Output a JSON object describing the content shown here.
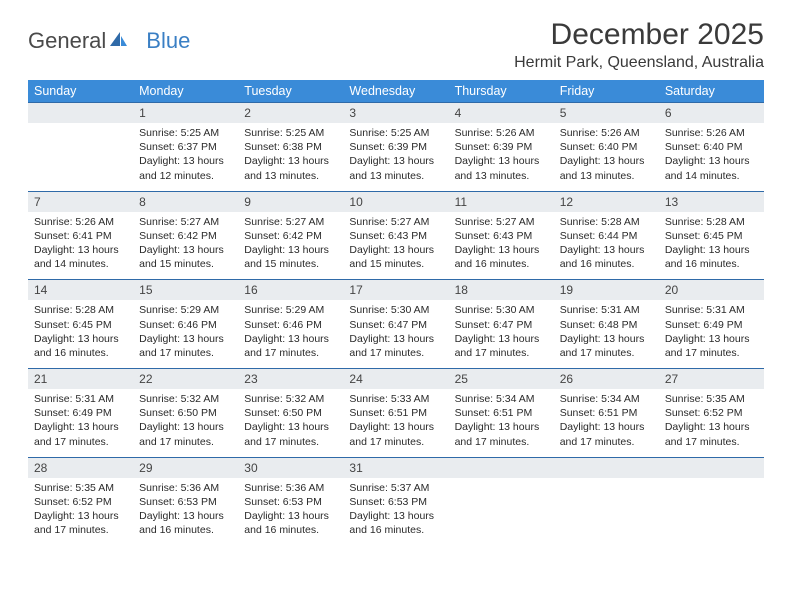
{
  "logo": {
    "general": "General",
    "blue": "Blue"
  },
  "header": {
    "month_title": "December 2025",
    "location": "Hermit Park, Queensland, Australia"
  },
  "style": {
    "header_bg": "#3a8bd8",
    "header_fg": "#ffffff",
    "daynum_bg": "#e9ecef",
    "daynum_border": "#2f6aa8",
    "body_bg": "#ffffff",
    "text_color": "#333333",
    "title_fontsize": 30,
    "location_fontsize": 16,
    "dayheader_fontsize": 12.5,
    "body_fontsize": 10.5
  },
  "weekdays": [
    "Sunday",
    "Monday",
    "Tuesday",
    "Wednesday",
    "Thursday",
    "Friday",
    "Saturday"
  ],
  "weeks": [
    [
      null,
      {
        "n": "1",
        "sunrise": "5:25 AM",
        "sunset": "6:37 PM",
        "daylight": "13 hours and 12 minutes."
      },
      {
        "n": "2",
        "sunrise": "5:25 AM",
        "sunset": "6:38 PM",
        "daylight": "13 hours and 13 minutes."
      },
      {
        "n": "3",
        "sunrise": "5:25 AM",
        "sunset": "6:39 PM",
        "daylight": "13 hours and 13 minutes."
      },
      {
        "n": "4",
        "sunrise": "5:26 AM",
        "sunset": "6:39 PM",
        "daylight": "13 hours and 13 minutes."
      },
      {
        "n": "5",
        "sunrise": "5:26 AM",
        "sunset": "6:40 PM",
        "daylight": "13 hours and 13 minutes."
      },
      {
        "n": "6",
        "sunrise": "5:26 AM",
        "sunset": "6:40 PM",
        "daylight": "13 hours and 14 minutes."
      }
    ],
    [
      {
        "n": "7",
        "sunrise": "5:26 AM",
        "sunset": "6:41 PM",
        "daylight": "13 hours and 14 minutes."
      },
      {
        "n": "8",
        "sunrise": "5:27 AM",
        "sunset": "6:42 PM",
        "daylight": "13 hours and 15 minutes."
      },
      {
        "n": "9",
        "sunrise": "5:27 AM",
        "sunset": "6:42 PM",
        "daylight": "13 hours and 15 minutes."
      },
      {
        "n": "10",
        "sunrise": "5:27 AM",
        "sunset": "6:43 PM",
        "daylight": "13 hours and 15 minutes."
      },
      {
        "n": "11",
        "sunrise": "5:27 AM",
        "sunset": "6:43 PM",
        "daylight": "13 hours and 16 minutes."
      },
      {
        "n": "12",
        "sunrise": "5:28 AM",
        "sunset": "6:44 PM",
        "daylight": "13 hours and 16 minutes."
      },
      {
        "n": "13",
        "sunrise": "5:28 AM",
        "sunset": "6:45 PM",
        "daylight": "13 hours and 16 minutes."
      }
    ],
    [
      {
        "n": "14",
        "sunrise": "5:28 AM",
        "sunset": "6:45 PM",
        "daylight": "13 hours and 16 minutes."
      },
      {
        "n": "15",
        "sunrise": "5:29 AM",
        "sunset": "6:46 PM",
        "daylight": "13 hours and 17 minutes."
      },
      {
        "n": "16",
        "sunrise": "5:29 AM",
        "sunset": "6:46 PM",
        "daylight": "13 hours and 17 minutes."
      },
      {
        "n": "17",
        "sunrise": "5:30 AM",
        "sunset": "6:47 PM",
        "daylight": "13 hours and 17 minutes."
      },
      {
        "n": "18",
        "sunrise": "5:30 AM",
        "sunset": "6:47 PM",
        "daylight": "13 hours and 17 minutes."
      },
      {
        "n": "19",
        "sunrise": "5:31 AM",
        "sunset": "6:48 PM",
        "daylight": "13 hours and 17 minutes."
      },
      {
        "n": "20",
        "sunrise": "5:31 AM",
        "sunset": "6:49 PM",
        "daylight": "13 hours and 17 minutes."
      }
    ],
    [
      {
        "n": "21",
        "sunrise": "5:31 AM",
        "sunset": "6:49 PM",
        "daylight": "13 hours and 17 minutes."
      },
      {
        "n": "22",
        "sunrise": "5:32 AM",
        "sunset": "6:50 PM",
        "daylight": "13 hours and 17 minutes."
      },
      {
        "n": "23",
        "sunrise": "5:32 AM",
        "sunset": "6:50 PM",
        "daylight": "13 hours and 17 minutes."
      },
      {
        "n": "24",
        "sunrise": "5:33 AM",
        "sunset": "6:51 PM",
        "daylight": "13 hours and 17 minutes."
      },
      {
        "n": "25",
        "sunrise": "5:34 AM",
        "sunset": "6:51 PM",
        "daylight": "13 hours and 17 minutes."
      },
      {
        "n": "26",
        "sunrise": "5:34 AM",
        "sunset": "6:51 PM",
        "daylight": "13 hours and 17 minutes."
      },
      {
        "n": "27",
        "sunrise": "5:35 AM",
        "sunset": "6:52 PM",
        "daylight": "13 hours and 17 minutes."
      }
    ],
    [
      {
        "n": "28",
        "sunrise": "5:35 AM",
        "sunset": "6:52 PM",
        "daylight": "13 hours and 17 minutes."
      },
      {
        "n": "29",
        "sunrise": "5:36 AM",
        "sunset": "6:53 PM",
        "daylight": "13 hours and 16 minutes."
      },
      {
        "n": "30",
        "sunrise": "5:36 AM",
        "sunset": "6:53 PM",
        "daylight": "13 hours and 16 minutes."
      },
      {
        "n": "31",
        "sunrise": "5:37 AM",
        "sunset": "6:53 PM",
        "daylight": "13 hours and 16 minutes."
      },
      null,
      null,
      null
    ]
  ],
  "labels": {
    "sunrise_prefix": "Sunrise: ",
    "sunset_prefix": "Sunset: ",
    "daylight_prefix": "Daylight: "
  }
}
